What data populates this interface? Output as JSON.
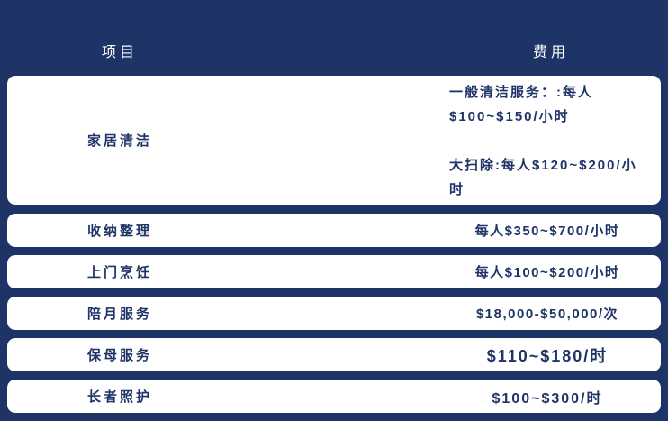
{
  "colors": {
    "background": "#1e3366",
    "card_background": "#ffffff",
    "header_text": "#ffffff",
    "body_text": "#1e3366"
  },
  "header": {
    "item_label": "项目",
    "fee_label": "费用"
  },
  "rows": [
    {
      "item": "家居清洁",
      "fee_lines": [
        "一般清洁服务：:每人",
        "$100~$150/小时",
        "大扫除:每人$120~$200/小时"
      ]
    },
    {
      "item": "收纳整理",
      "fee": "每人$350~$700/小时"
    },
    {
      "item": "上门烹饪",
      "fee": "每人$100~$200/小时"
    },
    {
      "item": "陪月服务",
      "fee": "$18,000-$50,000/次"
    },
    {
      "item": "保母服务",
      "fee": "$110~$180/时"
    },
    {
      "item": "长者照护",
      "fee": "$100~$300/时"
    }
  ]
}
